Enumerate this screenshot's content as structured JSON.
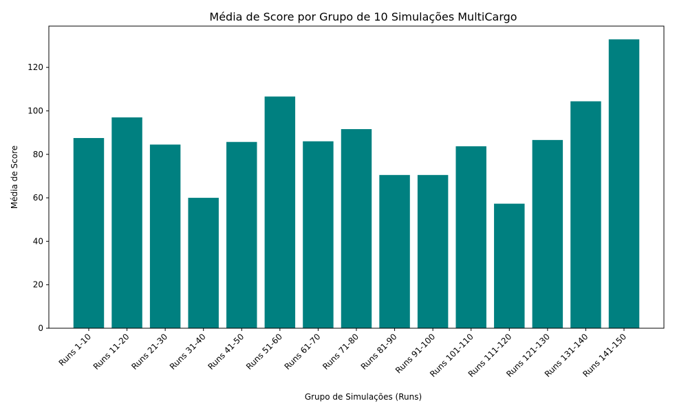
{
  "chart_data": {
    "type": "bar",
    "title": "Média de Score por Grupo de 10 Simulações MultiCargo",
    "xlabel": "Grupo de Simulações (Runs)",
    "ylabel": "Média de Score",
    "categories": [
      "Runs 1-10",
      "Runs 11-20",
      "Runs 21-30",
      "Runs 31-40",
      "Runs 41-50",
      "Runs 51-60",
      "Runs 61-70",
      "Runs 71-80",
      "Runs 81-90",
      "Runs 91-100",
      "Runs 101-110",
      "Runs 111-120",
      "Runs 121-130",
      "Runs 131-140",
      "Runs 141-150"
    ],
    "values": [
      87.5,
      97.0,
      84.5,
      60.0,
      85.7,
      106.6,
      86.0,
      91.6,
      70.5,
      70.5,
      83.7,
      57.3,
      86.6,
      104.4,
      132.9
    ],
    "ylim": [
      0,
      139
    ],
    "yticks": [
      0,
      20,
      40,
      60,
      80,
      100,
      120
    ],
    "bar_color": "#008080",
    "grid": false,
    "legend": "none"
  }
}
